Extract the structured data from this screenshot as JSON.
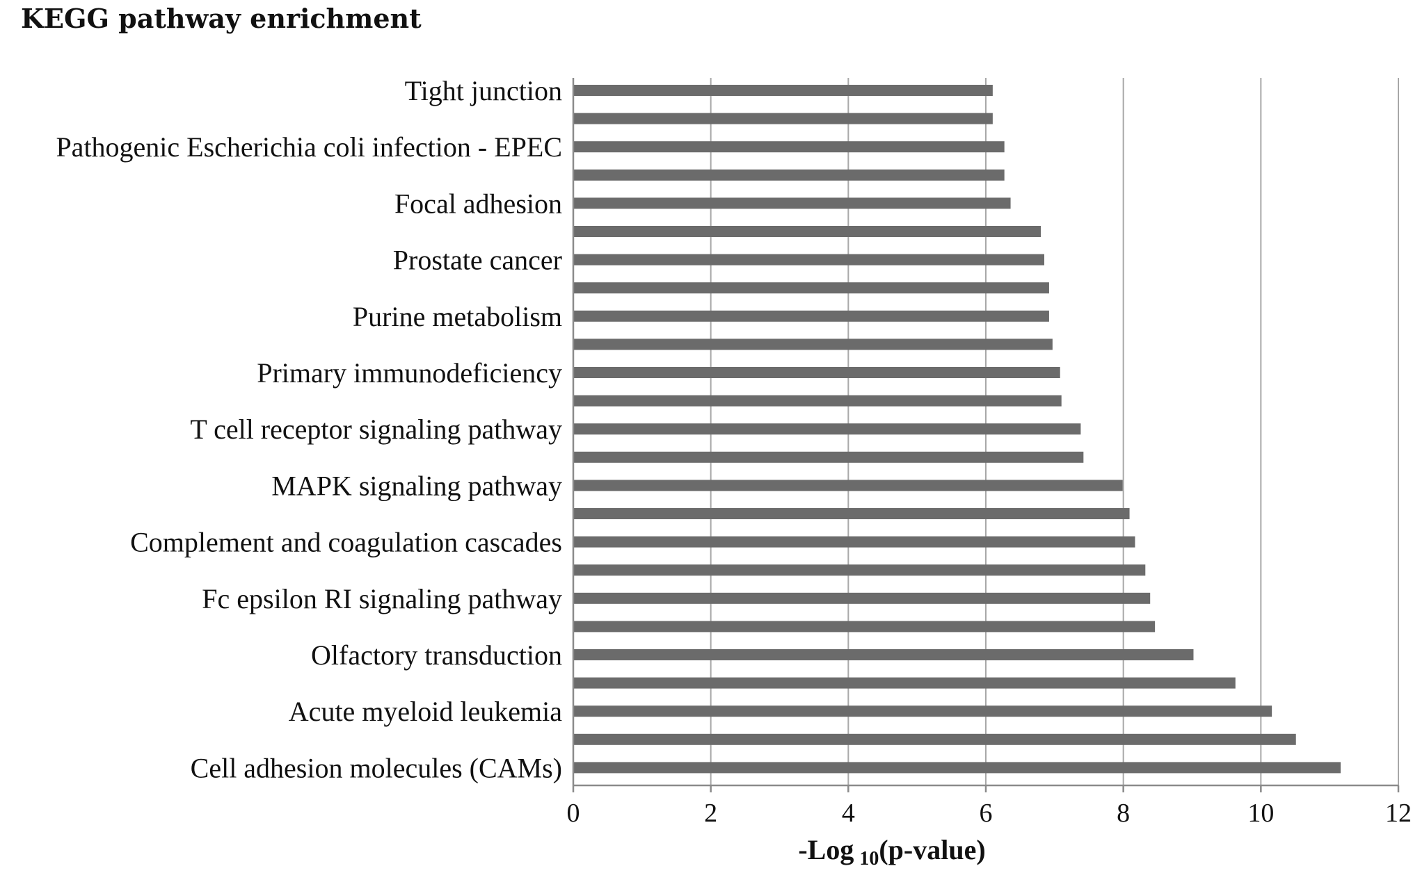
{
  "chart_data": {
    "type": "bar",
    "orientation": "horizontal",
    "title": "KEGG pathway enrichment",
    "xlabel_main": "-Log",
    "xlabel_sub": "10",
    "xlabel_tail": "(p-value)",
    "xlim": [
      0,
      12
    ],
    "xticks": [
      "0",
      "2",
      "4",
      "6",
      "8",
      "10",
      "12"
    ],
    "grid": "vertical",
    "bar_color": "#6b6b6b",
    "categories": [
      "Tight junction",
      "",
      "Pathogenic Escherichia coli infection - EPEC",
      "",
      "Focal adhesion",
      "",
      "Prostate cancer",
      "",
      "Purine metabolism",
      "",
      "Primary immunodeficiency",
      "",
      "T cell receptor signaling pathway",
      "",
      "MAPK signaling pathway",
      "",
      "Complement and coagulation cascades",
      "",
      "Fc epsilon RI signaling pathway",
      "",
      "Olfactory transduction",
      "",
      "Acute myeloid leukemia",
      "",
      "Cell adhesion molecules (CAMs)"
    ],
    "values": [
      6.1,
      6.1,
      6.27,
      6.27,
      6.36,
      6.8,
      6.85,
      6.92,
      6.92,
      6.97,
      7.08,
      7.1,
      7.38,
      7.42,
      7.99,
      8.09,
      8.17,
      8.32,
      8.39,
      8.46,
      9.02,
      9.63,
      10.16,
      10.51,
      11.16
    ]
  }
}
